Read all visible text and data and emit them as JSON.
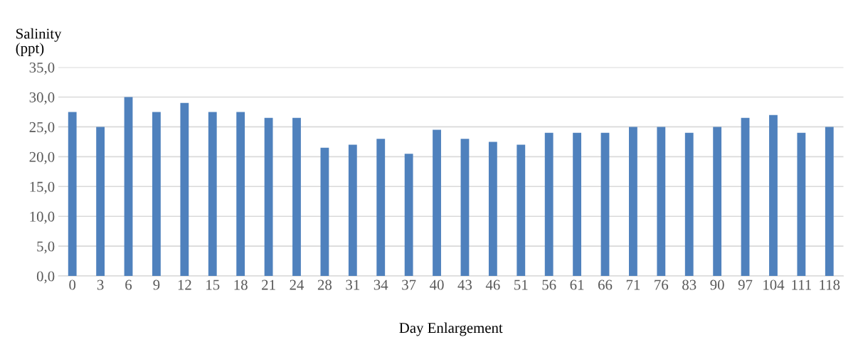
{
  "chart_data": {
    "type": "bar",
    "xlabel": "Day Enlargement",
    "ylabel": "Salinity\n(ppt)",
    "categories": [
      "0",
      "3",
      "6",
      "9",
      "12",
      "15",
      "18",
      "21",
      "24",
      "28",
      "31",
      "34",
      "37",
      "40",
      "43",
      "46",
      "51",
      "56",
      "61",
      "66",
      "71",
      "76",
      "83",
      "90",
      "97",
      "104",
      "111",
      "118"
    ],
    "values": [
      27.5,
      25,
      30,
      27.5,
      29,
      27.5,
      27.5,
      26.5,
      26.5,
      21.5,
      22,
      23,
      20.5,
      24.5,
      23,
      22.5,
      22,
      24,
      24,
      24,
      25,
      25,
      24,
      25,
      26.5,
      27,
      24,
      25
    ],
    "color": "#4f81bd",
    "ylim": [
      0,
      35
    ],
    "yticks": [
      {
        "value": 0,
        "label": "0,0"
      },
      {
        "value": 5,
        "label": "5,0"
      },
      {
        "value": 10,
        "label": "10,0"
      },
      {
        "value": 15,
        "label": "15,0"
      },
      {
        "value": 20,
        "label": "20,0"
      },
      {
        "value": 25,
        "label": "25,0"
      },
      {
        "value": 30,
        "label": "30,0"
      },
      {
        "value": 35,
        "label": "35,0"
      }
    ],
    "grid": "y"
  }
}
